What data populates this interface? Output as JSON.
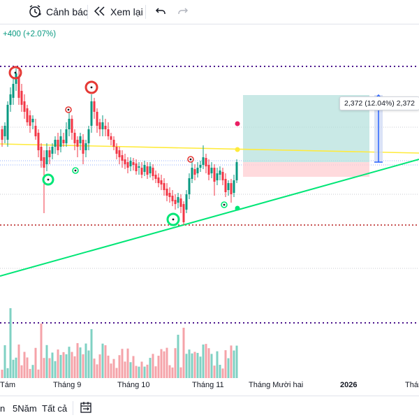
{
  "toolbar": {
    "alert_label": "Cảnh báo",
    "replay_label": "Xem lại",
    "undo_icon": "undo-icon",
    "redo_icon": "redo-icon"
  },
  "header": {
    "change_text": "+400 (+2.07%)"
  },
  "measurement": {
    "label": "2,372 (12.04%) 2,372"
  },
  "time_axis": {
    "labels": [
      "Tám",
      "Tháng 9",
      "Tháng 10",
      "Tháng 11",
      "Tháng Mười hai",
      "2026",
      "Thán"
    ]
  },
  "bottombar": {
    "ranges": [
      "n",
      "5Năm",
      "Tất cả"
    ],
    "calendar_icon": "calendar-range-icon"
  },
  "colors": {
    "up": "#089981",
    "down": "#f23645",
    "volume_up": "#7fd1c3",
    "volume_down": "#f5a3a9",
    "trendline": "#00e676",
    "horizontal_line": "#ffeb3b",
    "dotted_purple": "#4a148c",
    "dotted_red": "#b71c1c",
    "profit_zone": "#b2dfdb",
    "loss_zone": "#ffcdd2",
    "arrow": "#2962ff"
  }
}
